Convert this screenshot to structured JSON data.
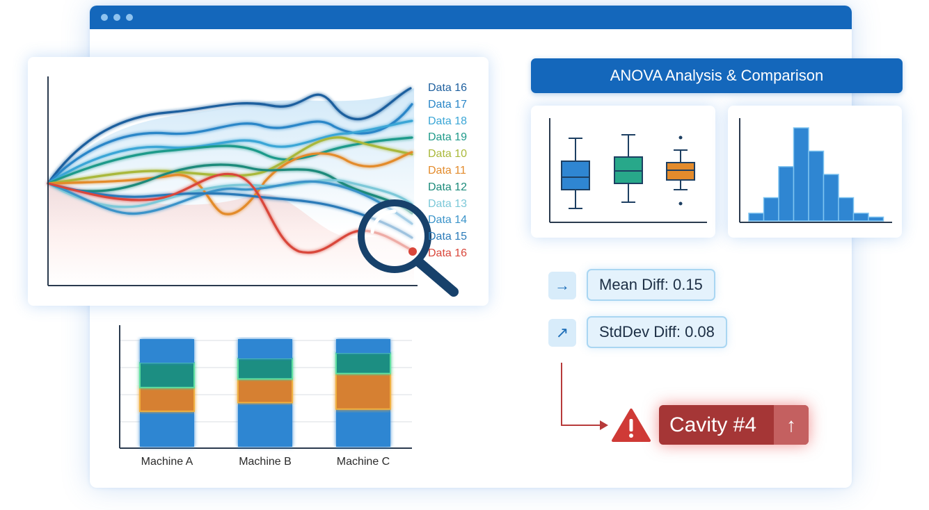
{
  "window": {
    "dots": [
      "dot",
      "dot",
      "dot"
    ]
  },
  "line_chart": {
    "legend": [
      {
        "label": "Data 16",
        "color": "#1d5f9e"
      },
      {
        "label": "Data 17",
        "color": "#2a86c8"
      },
      {
        "label": "Data 18",
        "color": "#3aa6d6"
      },
      {
        "label": "Data 19",
        "color": "#1f9a8a"
      },
      {
        "label": "Data 10",
        "color": "#a9b83a"
      },
      {
        "label": "Data 11",
        "color": "#e38b2c"
      },
      {
        "label": "Data 12",
        "color": "#1b8a7a"
      },
      {
        "label": "Data 13",
        "color": "#7cc8d8"
      },
      {
        "label": "Data 14",
        "color": "#3a93c9"
      },
      {
        "label": "Data 15",
        "color": "#2a7ab8"
      },
      {
        "label": "Data 16",
        "color": "#d9463a"
      }
    ],
    "magnifier_icon": "magnifying-glass-icon"
  },
  "stacked_bars": {
    "categories": [
      "Machine A",
      "Machine B",
      "Machine C"
    ],
    "segments": [
      {
        "name": "base",
        "color": "#2f86d2",
        "values": [
          0.33,
          0.41,
          0.35
        ]
      },
      {
        "name": "orange",
        "color": "#d68030",
        "values": [
          0.22,
          0.22,
          0.33
        ]
      },
      {
        "name": "green",
        "color": "#1f8e82",
        "values": [
          0.23,
          0.19,
          0.19
        ]
      },
      {
        "name": "top",
        "color": "#2f86d2",
        "values": [
          0.22,
          0.18,
          0.13
        ]
      }
    ]
  },
  "anova": {
    "title": "ANOVA Analysis & Comparison",
    "boxplot_colors": [
      "#2f86d2",
      "#28a88a",
      "#e38b2c"
    ],
    "histogram_values": [
      1,
      3,
      7,
      12,
      9,
      6,
      3,
      1,
      0.5
    ]
  },
  "stats": {
    "mean": {
      "icon": "→",
      "icon_name": "arrow-right-icon",
      "label": "Mean Diff: 0.15"
    },
    "stddev": {
      "icon": "↗",
      "icon_name": "arrow-up-right-icon",
      "label": "StdDev Diff: 0.08"
    }
  },
  "alert": {
    "warning_icon": "warning-icon",
    "label": "Cavity #4",
    "arrow": "↑",
    "color": "#a53636"
  }
}
